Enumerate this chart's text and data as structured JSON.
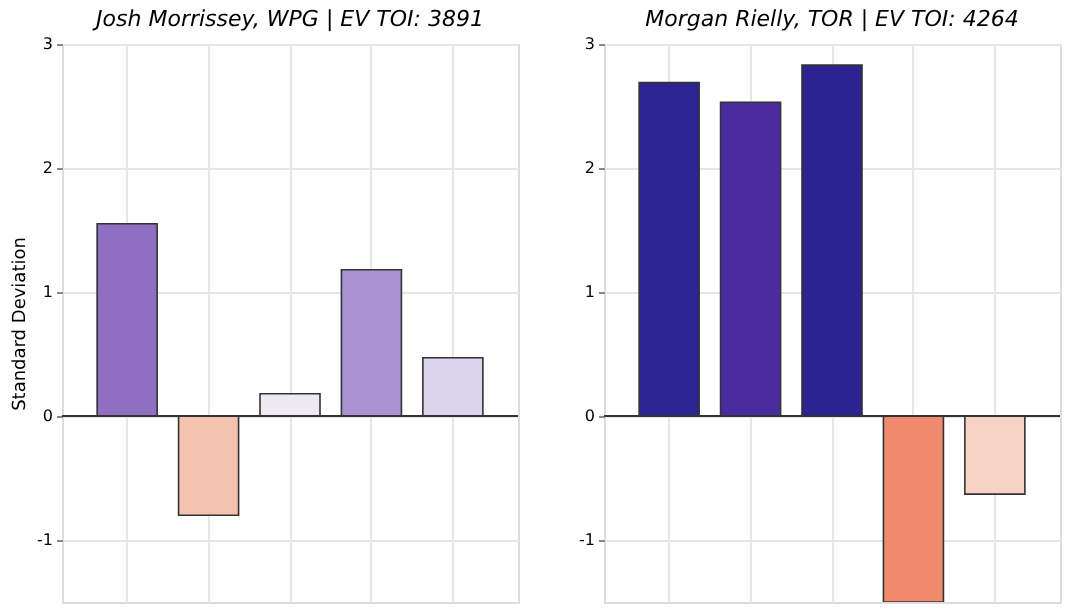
{
  "chart_data": [
    {
      "type": "bar",
      "title": "Josh Morrissey, WPG  |  EV TOI: 3891",
      "ylabel": "Standard Deviation",
      "categories": [
        null,
        null,
        null,
        null,
        null
      ],
      "values": [
        1.55,
        -0.8,
        0.18,
        1.18,
        0.47
      ],
      "colors": [
        "#8e6fc1",
        "#f4c3b0",
        "#eeeaf3",
        "#ab93d2",
        "#dcd3ec"
      ],
      "ylim": [
        -1.5,
        3
      ],
      "yticks": [
        -1,
        0,
        1,
        2,
        3
      ],
      "grid": true,
      "tick_labels": "y",
      "ref_lines": [
        {
          "axis": "y",
          "value": 0,
          "color": "#333333"
        }
      ]
    },
    {
      "type": "bar",
      "title": "Morgan Rielly, TOR  |  EV TOI: 4264",
      "categories": [
        null,
        null,
        null,
        null,
        null
      ],
      "values": [
        2.69,
        2.53,
        2.83,
        -1.5,
        -0.63
      ],
      "colors": [
        "#2c2591",
        "#4a2c9f",
        "#2a2390",
        "#f08a6d",
        "#f7d3c6"
      ],
      "ylim": [
        -1.5,
        3
      ],
      "yticks": [
        -1,
        0,
        1,
        2,
        3
      ],
      "grid": true,
      "tick_labels": "y",
      "ref_lines": [
        {
          "axis": "y",
          "value": 0,
          "color": "#333333"
        }
      ]
    }
  ]
}
